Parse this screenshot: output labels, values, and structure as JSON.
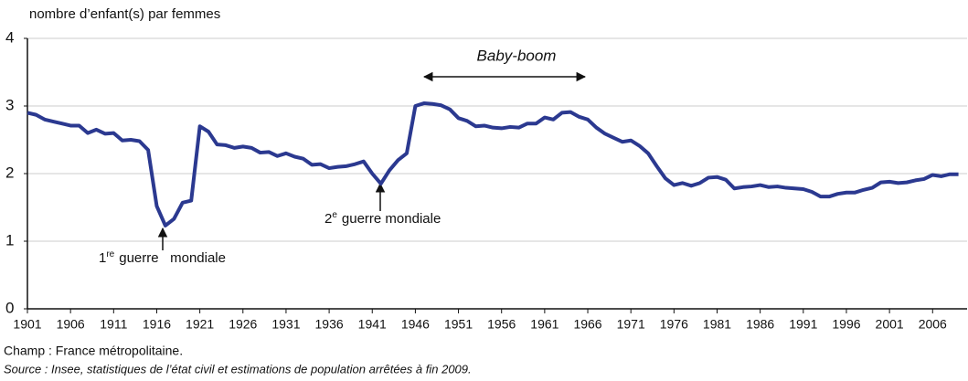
{
  "chart_data": {
    "type": "line",
    "y_axis_label": "nombre d’enfant(s) par femmes",
    "x": [
      1901,
      1902,
      1903,
      1904,
      1905,
      1906,
      1907,
      1908,
      1909,
      1910,
      1911,
      1912,
      1913,
      1914,
      1915,
      1916,
      1917,
      1918,
      1919,
      1920,
      1921,
      1922,
      1923,
      1924,
      1925,
      1926,
      1927,
      1928,
      1929,
      1930,
      1931,
      1932,
      1933,
      1934,
      1935,
      1936,
      1937,
      1938,
      1939,
      1940,
      1941,
      1942,
      1943,
      1944,
      1945,
      1946,
      1947,
      1948,
      1949,
      1950,
      1951,
      1952,
      1953,
      1954,
      1955,
      1956,
      1957,
      1958,
      1959,
      1960,
      1961,
      1962,
      1963,
      1964,
      1965,
      1966,
      1967,
      1968,
      1969,
      1970,
      1971,
      1972,
      1973,
      1974,
      1975,
      1976,
      1977,
      1978,
      1979,
      1980,
      1981,
      1982,
      1983,
      1984,
      1985,
      1986,
      1987,
      1988,
      1989,
      1990,
      1991,
      1992,
      1993,
      1994,
      1995,
      1996,
      1997,
      1998,
      1999,
      2000,
      2001,
      2002,
      2003,
      2004,
      2005,
      2006,
      2007,
      2008,
      2009
    ],
    "series": [
      {
        "color": "#2b3990",
        "values": [
          2.9,
          2.87,
          2.8,
          2.77,
          2.74,
          2.71,
          2.71,
          2.6,
          2.65,
          2.59,
          2.6,
          2.49,
          2.5,
          2.48,
          2.35,
          1.52,
          1.23,
          1.33,
          1.57,
          1.6,
          2.7,
          2.62,
          2.43,
          2.42,
          2.38,
          2.4,
          2.38,
          2.31,
          2.32,
          2.26,
          2.3,
          2.25,
          2.22,
          2.13,
          2.14,
          2.08,
          2.1,
          2.11,
          2.14,
          2.18,
          2.0,
          1.85,
          2.05,
          2.2,
          2.3,
          3.0,
          3.04,
          3.03,
          3.01,
          2.95,
          2.82,
          2.78,
          2.7,
          2.71,
          2.68,
          2.67,
          2.69,
          2.68,
          2.74,
          2.74,
          2.83,
          2.8,
          2.9,
          2.91,
          2.84,
          2.8,
          2.68,
          2.59,
          2.53,
          2.47,
          2.49,
          2.41,
          2.3,
          2.11,
          1.93,
          1.83,
          1.86,
          1.82,
          1.86,
          1.94,
          1.95,
          1.91,
          1.78,
          1.8,
          1.81,
          1.83,
          1.8,
          1.81,
          1.79,
          1.78,
          1.77,
          1.73,
          1.66,
          1.66,
          1.7,
          1.72,
          1.72,
          1.76,
          1.79,
          1.87,
          1.88,
          1.86,
          1.87,
          1.9,
          1.92,
          1.98,
          1.96,
          1.99,
          1.99
        ]
      }
    ],
    "xlim": [
      1901,
      2010
    ],
    "xticks": [
      1901,
      1906,
      1911,
      1916,
      1921,
      1926,
      1931,
      1936,
      1941,
      1946,
      1951,
      1956,
      1961,
      1966,
      1971,
      1976,
      1981,
      1986,
      1991,
      1996,
      2001,
      2006
    ],
    "ylim": [
      0,
      4
    ],
    "yticks": [
      0,
      1,
      2,
      3,
      4
    ],
    "grid": true,
    "annotations": {
      "baby_boom": "Baby-boom",
      "ww1": {
        "num": "1",
        "sup": "re",
        "rest": "guerre   mondiale"
      },
      "ww2": {
        "num": "2",
        "sup": "e",
        "rest": "guerre mondiale"
      }
    },
    "note": "Champ : France métropolitaine.",
    "source": "Source : Insee, statistiques de l’état civil et estimations de population arrêtées à fin 2009."
  }
}
